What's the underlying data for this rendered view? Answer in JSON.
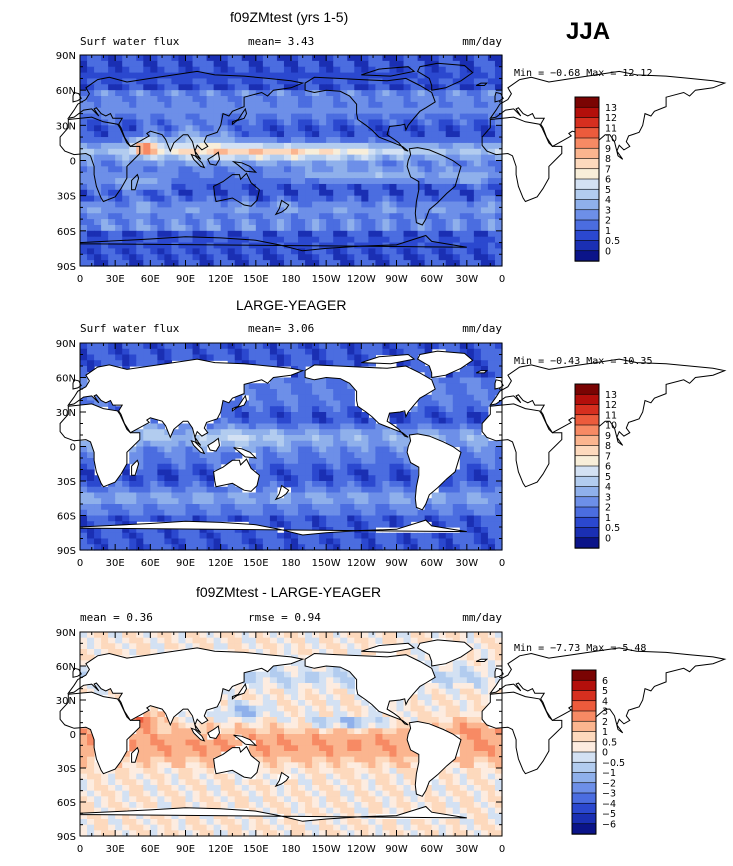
{
  "figure": {
    "season": "JJA"
  },
  "chart_data": [
    {
      "type": "heatmap",
      "title": "f09ZMtest (yrs 1-5)",
      "left_label": "Surf water flux",
      "center_label": "mean=   3.43",
      "units": "mm/day",
      "minmax": "Min =  −0.68 Max =  12.12",
      "mean": 3.43,
      "min": -0.68,
      "max": 12.12,
      "land_masked": false,
      "x_ticks": [
        "0",
        "30E",
        "60E",
        "90E",
        "120E",
        "150E",
        "180",
        "150W",
        "120W",
        "90W",
        "60W",
        "30W",
        "0"
      ],
      "y_ticks": [
        "90N",
        "60N",
        "30N",
        "0",
        "30S",
        "60S",
        "90S"
      ],
      "colorbar_labels": [
        "13",
        "12",
        "11",
        "10",
        "9",
        "8",
        "7",
        "6",
        "5",
        "4",
        "3",
        "2",
        "1",
        "0.5",
        "0"
      ],
      "colors": [
        "#7a0403",
        "#b30f0b",
        "#d62f1f",
        "#ec5b3c",
        "#f78a64",
        "#fbb58f",
        "#fdd9bd",
        "#f8eed9",
        "#d3e1f3",
        "#b2ccef",
        "#8fb0eb",
        "#6d8fe8",
        "#4b6de0",
        "#2b48cf",
        "#1a2fb3",
        "#0b1489"
      ]
    },
    {
      "type": "heatmap",
      "title": "LARGE-YEAGER",
      "left_label": "Surf water flux",
      "center_label": "mean=   3.06",
      "units": "mm/day",
      "minmax": "Min =  −0.43 Max =  10.35",
      "mean": 3.06,
      "min": -0.43,
      "max": 10.35,
      "land_masked": true,
      "x_ticks": [
        "0",
        "30E",
        "60E",
        "90E",
        "120E",
        "150E",
        "180",
        "150W",
        "120W",
        "90W",
        "60W",
        "30W",
        "0"
      ],
      "y_ticks": [
        "90N",
        "60N",
        "30N",
        "0",
        "30S",
        "60S",
        "90S"
      ],
      "colorbar_labels": [
        "13",
        "12",
        "11",
        "10",
        "9",
        "8",
        "7",
        "6",
        "5",
        "4",
        "3",
        "2",
        "1",
        "0.5",
        "0"
      ],
      "colors": [
        "#7a0403",
        "#b30f0b",
        "#d62f1f",
        "#ec5b3c",
        "#f78a64",
        "#fbb58f",
        "#fdd9bd",
        "#f8eed9",
        "#d3e1f3",
        "#b2ccef",
        "#8fb0eb",
        "#6d8fe8",
        "#4b6de0",
        "#2b48cf",
        "#1a2fb3",
        "#0b1489"
      ]
    },
    {
      "type": "heatmap",
      "title": "f09ZMtest - LARGE-YEAGER",
      "left_label": "mean =    0.36",
      "center_label": "rmse =    0.94",
      "units": "mm/day",
      "minmax": "Min =  −7.73 Max =   5.48",
      "mean": 0.36,
      "rmse": 0.94,
      "min": -7.73,
      "max": 5.48,
      "land_masked": true,
      "x_ticks": [
        "0",
        "30E",
        "60E",
        "90E",
        "120E",
        "150E",
        "180",
        "150W",
        "120W",
        "90W",
        "60W",
        "30W",
        "0"
      ],
      "y_ticks": [
        "90N",
        "60N",
        "30N",
        "0",
        "30S",
        "60S",
        "90S"
      ],
      "colorbar_labels": [
        "6",
        "5",
        "4",
        "3",
        "2",
        "1",
        "0.5",
        "0",
        "−0.5",
        "−1",
        "−2",
        "−3",
        "−4",
        "−5",
        "−6"
      ],
      "colors": [
        "#7a0403",
        "#b30f0b",
        "#d62f1f",
        "#ec5b3c",
        "#f78a64",
        "#fbb58f",
        "#fdd9bd",
        "#fdece0",
        "#d3e1f3",
        "#b2ccef",
        "#8fb0eb",
        "#6d8fe8",
        "#4b6de0",
        "#2b48cf",
        "#1a2fb3",
        "#0b1489"
      ]
    }
  ]
}
